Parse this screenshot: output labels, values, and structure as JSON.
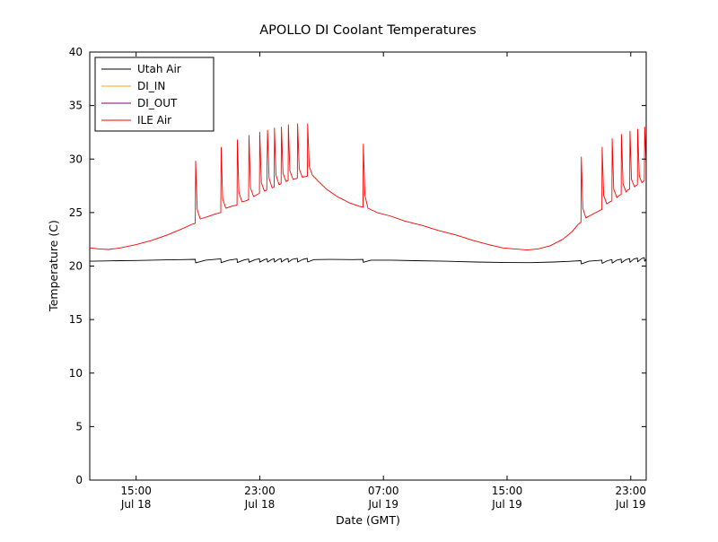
{
  "chart_data": {
    "type": "line",
    "title": "APOLLO DI Coolant Temperatures",
    "xlabel": "Date (GMT)",
    "ylabel": "Temperature (C)",
    "ylim": [
      0,
      40
    ],
    "yticks": [
      0,
      5,
      10,
      15,
      20,
      25,
      30,
      35,
      40
    ],
    "xlim": [
      0,
      36
    ],
    "x_unit": "hours since Jul 18 12:00 GMT",
    "xticks": [
      {
        "pos": 3,
        "line1": "15:00",
        "line2": "Jul 18"
      },
      {
        "pos": 11,
        "line1": "23:00",
        "line2": "Jul 18"
      },
      {
        "pos": 19,
        "line1": "07:00",
        "line2": "Jul 19"
      },
      {
        "pos": 27,
        "line1": "15:00",
        "line2": "Jul 19"
      },
      {
        "pos": 35,
        "line1": "23:00",
        "line2": "Jul 19"
      }
    ],
    "grid": false,
    "legend_position": "upper-left",
    "background": "#ffffff",
    "axes_color": "#000000",
    "series": [
      {
        "name": "Utah Air",
        "color": "#000000",
        "points": [
          [
            0,
            20.45
          ],
          [
            1,
            20.48
          ],
          [
            2,
            20.5
          ],
          [
            3,
            20.52
          ],
          [
            4,
            20.55
          ],
          [
            5,
            20.58
          ],
          [
            6,
            20.6
          ],
          [
            6.83,
            20.63
          ],
          [
            6.85,
            20.3
          ],
          [
            7.5,
            20.55
          ],
          [
            8.48,
            20.68
          ],
          [
            8.5,
            20.32
          ],
          [
            9.0,
            20.55
          ],
          [
            9.53,
            20.66
          ],
          [
            9.55,
            20.33
          ],
          [
            10.0,
            20.58
          ],
          [
            10.28,
            20.65
          ],
          [
            10.3,
            20.35
          ],
          [
            10.7,
            20.6
          ],
          [
            10.98,
            20.68
          ],
          [
            11.0,
            20.36
          ],
          [
            11.3,
            20.6
          ],
          [
            11.48,
            20.68
          ],
          [
            11.5,
            20.37
          ],
          [
            11.75,
            20.6
          ],
          [
            11.93,
            20.69
          ],
          [
            11.95,
            20.38
          ],
          [
            12.2,
            20.62
          ],
          [
            12.38,
            20.7
          ],
          [
            12.4,
            20.38
          ],
          [
            12.65,
            20.62
          ],
          [
            12.83,
            20.7
          ],
          [
            12.85,
            20.38
          ],
          [
            13.1,
            20.62
          ],
          [
            13.43,
            20.72
          ],
          [
            13.45,
            20.38
          ],
          [
            13.8,
            20.63
          ],
          [
            14.08,
            20.72
          ],
          [
            14.1,
            20.38
          ],
          [
            14.5,
            20.6
          ],
          [
            15.5,
            20.62
          ],
          [
            17.0,
            20.6
          ],
          [
            17.68,
            20.62
          ],
          [
            17.7,
            20.35
          ],
          [
            18.2,
            20.55
          ],
          [
            19.5,
            20.55
          ],
          [
            21,
            20.5
          ],
          [
            23,
            20.45
          ],
          [
            25,
            20.38
          ],
          [
            27,
            20.33
          ],
          [
            28.5,
            20.32
          ],
          [
            30,
            20.38
          ],
          [
            31.2,
            20.45
          ],
          [
            31.78,
            20.5
          ],
          [
            31.8,
            20.2
          ],
          [
            32.3,
            20.45
          ],
          [
            33.13,
            20.55
          ],
          [
            33.15,
            20.25
          ],
          [
            33.5,
            20.5
          ],
          [
            33.78,
            20.6
          ],
          [
            33.8,
            20.28
          ],
          [
            34.1,
            20.55
          ],
          [
            34.38,
            20.65
          ],
          [
            34.4,
            20.3
          ],
          [
            34.7,
            20.6
          ],
          [
            34.93,
            20.7
          ],
          [
            34.95,
            20.35
          ],
          [
            35.2,
            20.65
          ],
          [
            35.43,
            20.75
          ],
          [
            35.45,
            20.4
          ],
          [
            35.7,
            20.7
          ],
          [
            35.88,
            20.8
          ],
          [
            35.9,
            20.45
          ],
          [
            36.0,
            20.65
          ]
        ]
      },
      {
        "name": "DI_IN",
        "color": "#ffa500",
        "points": []
      },
      {
        "name": "DI_OUT",
        "color": "#800080",
        "points": []
      },
      {
        "name": "ILE Air",
        "color": "#ff0000",
        "points": [
          [
            0,
            21.7
          ],
          [
            0.6,
            21.6
          ],
          [
            1.2,
            21.55
          ],
          [
            2,
            21.7
          ],
          [
            3,
            22.0
          ],
          [
            4,
            22.4
          ],
          [
            5,
            22.9
          ],
          [
            6,
            23.5
          ],
          [
            6.6,
            23.9
          ],
          [
            6.83,
            24.0
          ],
          [
            6.85,
            29.8
          ],
          [
            6.95,
            25.3
          ],
          [
            7.15,
            24.4
          ],
          [
            7.6,
            24.6
          ],
          [
            8.2,
            24.9
          ],
          [
            8.48,
            25.0
          ],
          [
            8.5,
            31.1
          ],
          [
            8.6,
            26.3
          ],
          [
            8.8,
            25.4
          ],
          [
            9.2,
            25.6
          ],
          [
            9.53,
            25.7
          ],
          [
            9.55,
            31.8
          ],
          [
            9.65,
            26.9
          ],
          [
            9.85,
            26.0
          ],
          [
            10.1,
            26.1
          ],
          [
            10.28,
            26.2
          ],
          [
            10.3,
            32.2
          ],
          [
            10.4,
            27.3
          ],
          [
            10.6,
            26.5
          ],
          [
            10.85,
            26.7
          ],
          [
            10.98,
            26.8
          ],
          [
            11.0,
            32.5
          ],
          [
            11.1,
            27.8
          ],
          [
            11.3,
            27.0
          ],
          [
            11.45,
            27.1
          ],
          [
            11.5,
            32.7
          ],
          [
            11.6,
            28.2
          ],
          [
            11.8,
            27.3
          ],
          [
            11.93,
            27.4
          ],
          [
            11.95,
            32.9
          ],
          [
            12.05,
            28.5
          ],
          [
            12.25,
            27.6
          ],
          [
            12.38,
            27.7
          ],
          [
            12.4,
            33.0
          ],
          [
            12.5,
            28.7
          ],
          [
            12.7,
            27.9
          ],
          [
            12.83,
            28.0
          ],
          [
            12.85,
            33.2
          ],
          [
            12.95,
            28.9
          ],
          [
            13.15,
            28.1
          ],
          [
            13.43,
            28.2
          ],
          [
            13.45,
            33.3
          ],
          [
            13.55,
            29.1
          ],
          [
            13.75,
            28.3
          ],
          [
            14.08,
            28.4
          ],
          [
            14.1,
            33.3
          ],
          [
            14.2,
            29.3
          ],
          [
            14.4,
            28.5
          ],
          [
            14.8,
            27.9
          ],
          [
            15.3,
            27.2
          ],
          [
            16,
            26.5
          ],
          [
            16.8,
            25.9
          ],
          [
            17.4,
            25.6
          ],
          [
            17.68,
            25.5
          ],
          [
            17.7,
            31.4
          ],
          [
            17.8,
            26.6
          ],
          [
            18.0,
            25.4
          ],
          [
            18.6,
            25.0
          ],
          [
            19.4,
            24.7
          ],
          [
            20.4,
            24.2
          ],
          [
            21.5,
            23.8
          ],
          [
            22.6,
            23.3
          ],
          [
            23.7,
            22.9
          ],
          [
            24.8,
            22.4
          ],
          [
            25.8,
            22.0
          ],
          [
            26.7,
            21.7
          ],
          [
            27.5,
            21.6
          ],
          [
            28.3,
            21.5
          ],
          [
            29.0,
            21.6
          ],
          [
            29.8,
            21.9
          ],
          [
            30.6,
            22.5
          ],
          [
            31.2,
            23.2
          ],
          [
            31.6,
            23.9
          ],
          [
            31.78,
            24.1
          ],
          [
            31.8,
            30.2
          ],
          [
            31.9,
            25.4
          ],
          [
            32.1,
            24.5
          ],
          [
            32.6,
            24.9
          ],
          [
            33.13,
            25.3
          ],
          [
            33.15,
            31.1
          ],
          [
            33.25,
            26.6
          ],
          [
            33.45,
            25.8
          ],
          [
            33.65,
            26.0
          ],
          [
            33.78,
            26.1
          ],
          [
            33.8,
            31.9
          ],
          [
            33.9,
            27.2
          ],
          [
            34.1,
            26.4
          ],
          [
            34.25,
            26.6
          ],
          [
            34.38,
            26.7
          ],
          [
            34.4,
            32.3
          ],
          [
            34.5,
            27.7
          ],
          [
            34.7,
            26.9
          ],
          [
            34.8,
            27.1
          ],
          [
            34.93,
            27.2
          ],
          [
            34.95,
            32.6
          ],
          [
            35.05,
            28.1
          ],
          [
            35.25,
            27.4
          ],
          [
            35.32,
            27.5
          ],
          [
            35.43,
            27.6
          ],
          [
            35.45,
            32.8
          ],
          [
            35.55,
            28.4
          ],
          [
            35.72,
            27.8
          ],
          [
            35.8,
            27.9
          ],
          [
            35.88,
            28.0
          ],
          [
            35.9,
            33.0
          ],
          [
            36.0,
            29.5
          ]
        ]
      }
    ]
  }
}
